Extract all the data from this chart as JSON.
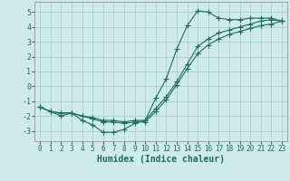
{
  "xlabel": "Humidex (Indice chaleur)",
  "background_color": "#ceeaea",
  "grid_color": "#aacece",
  "line_color": "#1a6e60",
  "xlim": [
    -0.5,
    23.5
  ],
  "ylim": [
    -3.7,
    5.7
  ],
  "xticks": [
    0,
    1,
    2,
    3,
    4,
    5,
    6,
    7,
    8,
    9,
    10,
    11,
    12,
    13,
    14,
    15,
    16,
    17,
    18,
    19,
    20,
    21,
    22,
    23
  ],
  "yticks": [
    -3,
    -2,
    -1,
    0,
    1,
    2,
    3,
    4,
    5
  ],
  "series1_x": [
    0,
    1,
    2,
    3,
    4,
    5,
    6,
    7,
    8,
    9,
    10,
    11,
    12,
    13,
    14,
    15,
    16,
    17,
    18,
    19,
    20,
    21,
    22,
    23
  ],
  "series1_y": [
    -1.4,
    -1.7,
    -2.0,
    -1.8,
    -2.3,
    -2.6,
    -3.1,
    -3.1,
    -2.9,
    -2.5,
    -2.3,
    -0.8,
    0.5,
    2.5,
    4.1,
    5.1,
    5.0,
    4.6,
    4.5,
    4.5,
    4.6,
    4.6,
    4.6,
    4.4
  ],
  "series2_x": [
    0,
    1,
    2,
    3,
    4,
    5,
    6,
    7,
    8,
    9,
    10,
    11,
    12,
    13,
    14,
    15,
    16,
    17,
    18,
    19,
    20,
    21,
    22,
    23
  ],
  "series2_y": [
    -1.4,
    -1.7,
    -1.8,
    -1.8,
    -2.0,
    -2.1,
    -2.3,
    -2.3,
    -2.4,
    -2.3,
    -2.3,
    -1.5,
    -0.7,
    0.3,
    1.5,
    2.7,
    3.2,
    3.6,
    3.8,
    4.0,
    4.2,
    4.4,
    4.5,
    4.4
  ],
  "series3_x": [
    0,
    1,
    2,
    3,
    4,
    5,
    6,
    7,
    8,
    9,
    10,
    11,
    12,
    13,
    14,
    15,
    16,
    17,
    18,
    19,
    20,
    21,
    22,
    23
  ],
  "series3_y": [
    -1.4,
    -1.7,
    -1.8,
    -1.8,
    -2.0,
    -2.2,
    -2.4,
    -2.4,
    -2.5,
    -2.4,
    -2.4,
    -1.7,
    -0.9,
    0.1,
    1.2,
    2.2,
    2.8,
    3.2,
    3.5,
    3.7,
    3.9,
    4.1,
    4.2,
    4.4
  ],
  "tick_fontsize": 5.5,
  "xlabel_fontsize": 7,
  "marker_size": 1.8,
  "line_width": 0.8
}
